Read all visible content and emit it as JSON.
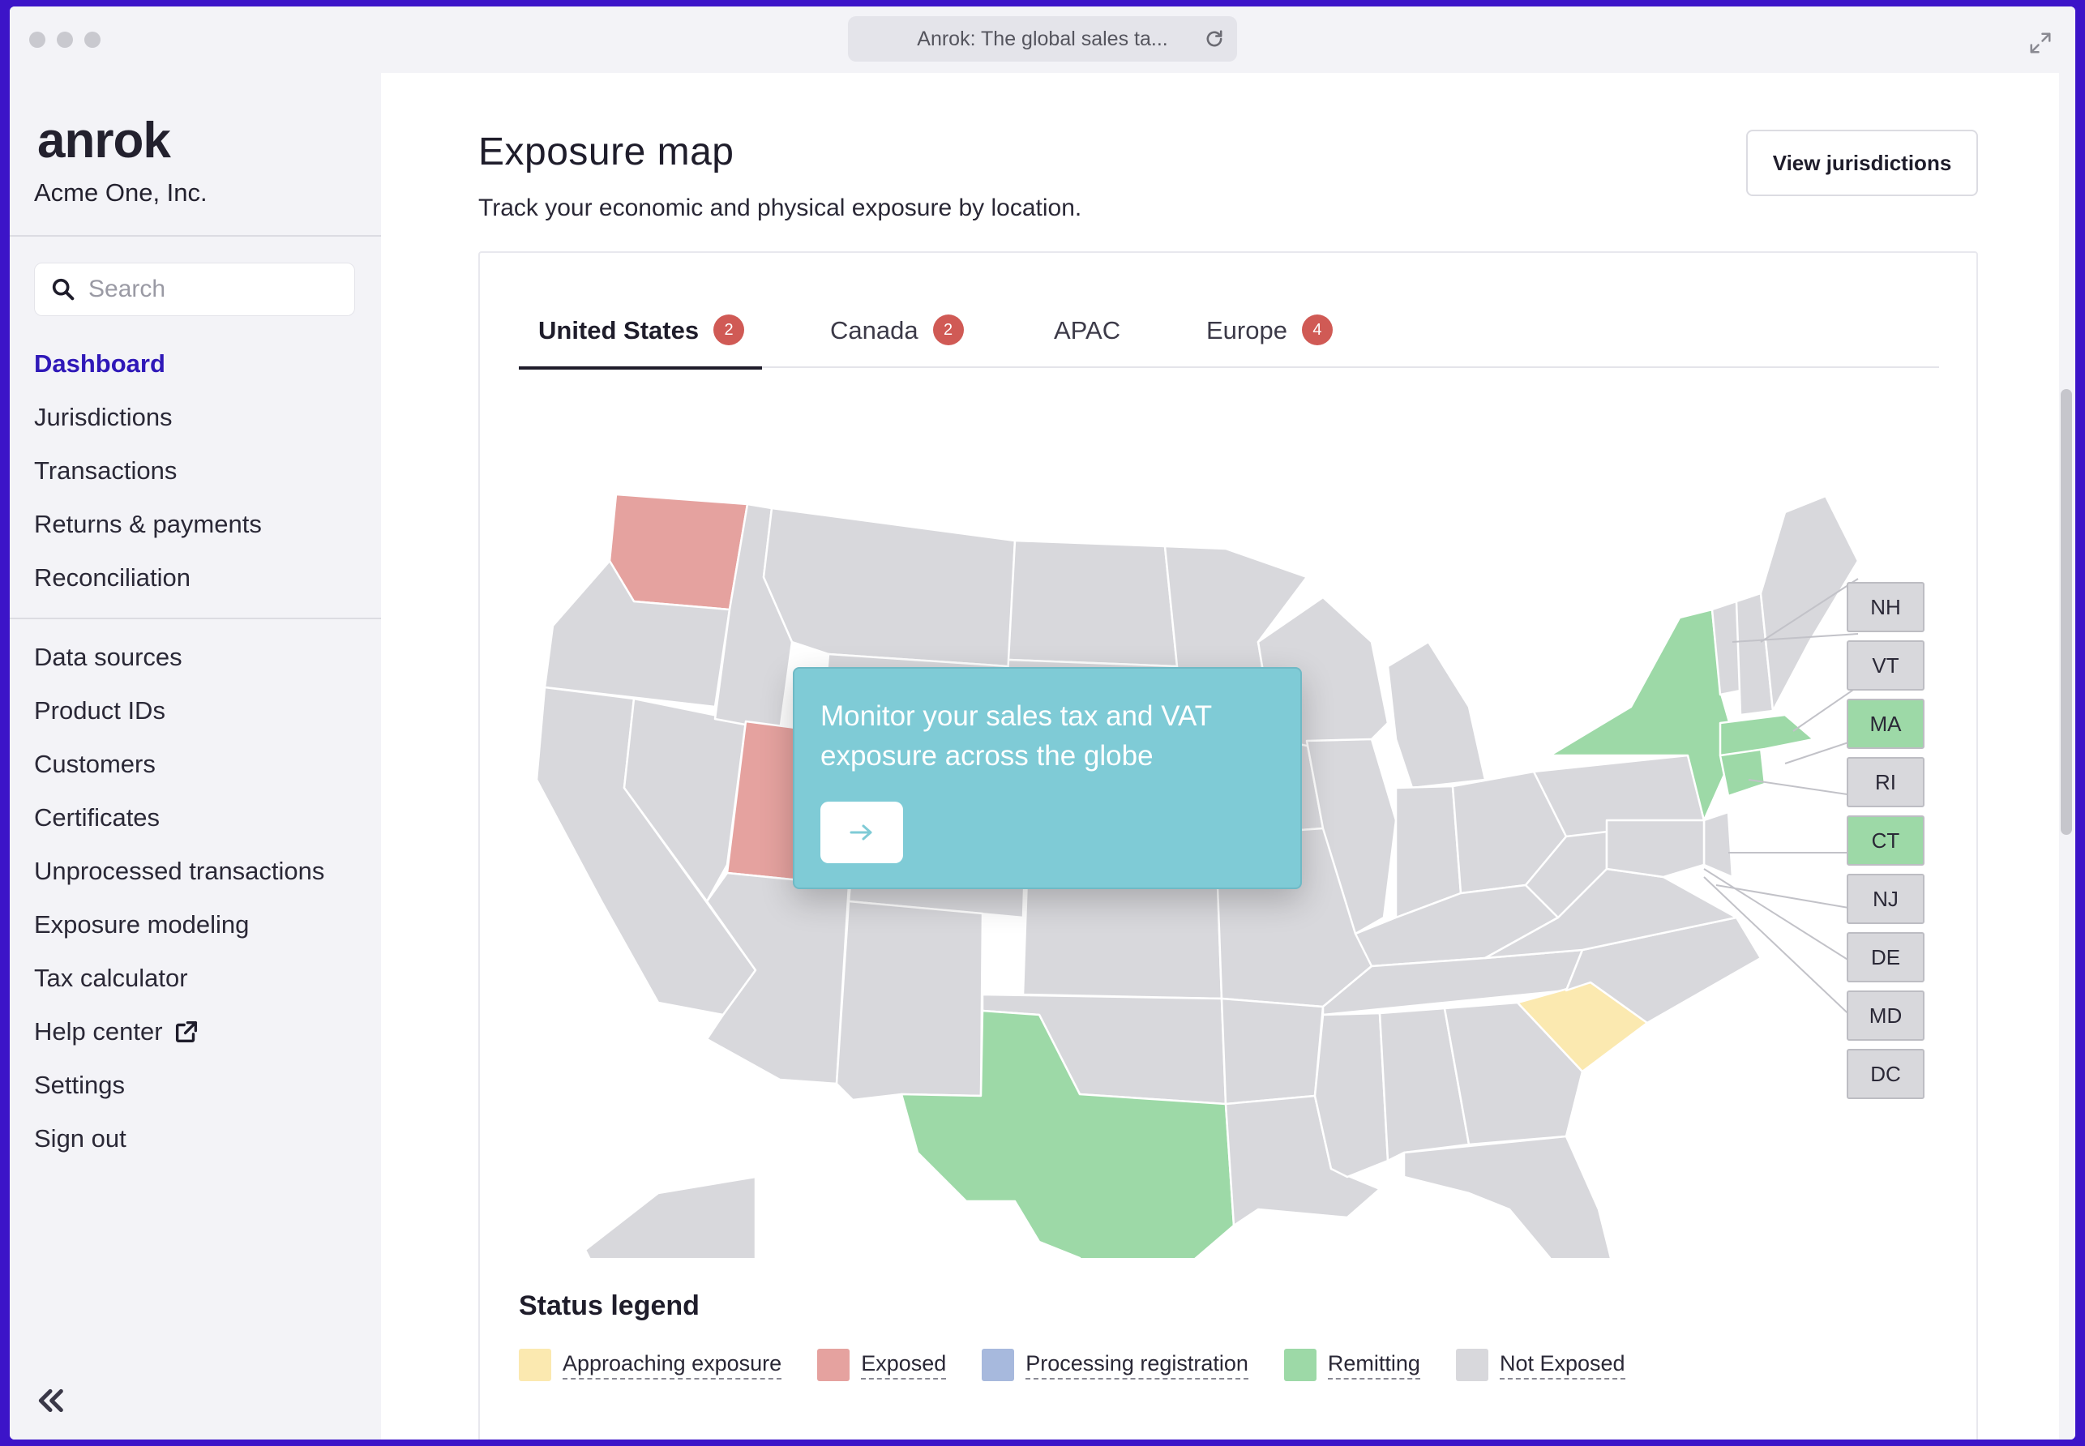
{
  "browser": {
    "url_title": "Anrok: The global sales ta..."
  },
  "sidebar": {
    "logo": "anrok",
    "company": "Acme One, Inc.",
    "search_placeholder": "Search",
    "nav_primary": [
      {
        "label": "Dashboard",
        "active": true
      },
      {
        "label": "Jurisdictions"
      },
      {
        "label": "Transactions"
      },
      {
        "label": "Returns & payments"
      },
      {
        "label": "Reconciliation"
      }
    ],
    "nav_secondary": [
      {
        "label": "Data sources"
      },
      {
        "label": "Product IDs"
      },
      {
        "label": "Customers"
      },
      {
        "label": "Certificates"
      },
      {
        "label": "Unprocessed transactions"
      },
      {
        "label": "Exposure modeling"
      },
      {
        "label": "Tax calculator"
      },
      {
        "label": "Help center",
        "icon": "external-link-icon"
      },
      {
        "label": "Settings"
      },
      {
        "label": "Sign out"
      }
    ]
  },
  "main": {
    "title": "Exposure map",
    "subtitle": "Track your economic and physical exposure by location.",
    "view_button": "View jurisdictions",
    "tabs": [
      {
        "label": "United States",
        "badge": "2",
        "active": true
      },
      {
        "label": "Canada",
        "badge": "2"
      },
      {
        "label": "APAC",
        "badge": ""
      },
      {
        "label": "Europe",
        "badge": "4"
      }
    ],
    "small_states": [
      {
        "code": "NH",
        "status": "not_exposed"
      },
      {
        "code": "VT",
        "status": "not_exposed"
      },
      {
        "code": "MA",
        "status": "remitting"
      },
      {
        "code": "RI",
        "status": "not_exposed"
      },
      {
        "code": "CT",
        "status": "remitting"
      },
      {
        "code": "NJ",
        "status": "not_exposed"
      },
      {
        "code": "DE",
        "status": "not_exposed"
      },
      {
        "code": "MD",
        "status": "not_exposed"
      },
      {
        "code": "DC",
        "status": "not_exposed"
      }
    ],
    "legend_title": "Status legend",
    "legend": [
      {
        "label": "Approaching exposure",
        "color": "#fbe9b0"
      },
      {
        "label": "Exposed",
        "color": "#e5a29f"
      },
      {
        "label": "Processing registration",
        "color": "#a7b9dd"
      },
      {
        "label": "Remitting",
        "color": "#9dd9a7"
      },
      {
        "label": "Not Exposed",
        "color": "#d8d8dc"
      }
    ],
    "popup": {
      "text": "Monitor your sales tax and VAT exposure across the globe",
      "button_icon": "arrow-right-icon"
    }
  },
  "colors": {
    "brand_frame": "#3c14c8",
    "active_nav": "#2f18b8",
    "badge": "#d05a55",
    "not_exposed": "#d8d8dc",
    "exposed": "#e5a29f",
    "remitting": "#9dd9a7",
    "approaching": "#fbe9b0",
    "popup": "#7fcbd6"
  }
}
